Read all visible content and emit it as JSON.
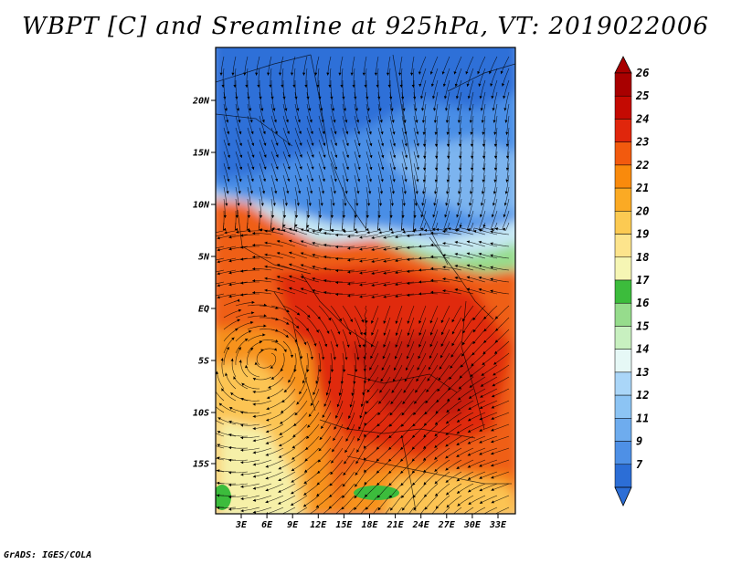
{
  "title": "WBPT [C] and Sreamline at 925hPa, VT: 2019022006",
  "credit": "GrADS: IGES/COLA",
  "lat_ticks": [
    "20N",
    "15N",
    "10N",
    "5N",
    "EQ",
    "5S",
    "10S",
    "15S"
  ],
  "lon_ticks": [
    "3E",
    "6E",
    "9E",
    "12E",
    "15E",
    "18E",
    "21E",
    "24E",
    "27E",
    "30E",
    "33E"
  ],
  "colorbar": {
    "levels": [
      {
        "label": "26",
        "color": "#a80000"
      },
      {
        "label": "25",
        "color": "#c40a02"
      },
      {
        "label": "24",
        "color": "#e0260c"
      },
      {
        "label": "23",
        "color": "#f25a0e"
      },
      {
        "label": "22",
        "color": "#f98a0c"
      },
      {
        "label": "21",
        "color": "#fbaa24"
      },
      {
        "label": "20",
        "color": "#fcca52"
      },
      {
        "label": "19",
        "color": "#fde48c"
      },
      {
        "label": "18",
        "color": "#f6f6b4"
      },
      {
        "label": "17",
        "color": "#3cbc3c"
      },
      {
        "label": "16",
        "color": "#96dc8c"
      },
      {
        "label": "15",
        "color": "#c8f0c0"
      },
      {
        "label": "14",
        "color": "#e6f8f6"
      },
      {
        "label": "13",
        "color": "#aad6f8"
      },
      {
        "label": "12",
        "color": "#8cc4f4"
      },
      {
        "label": "11",
        "color": "#6eacee"
      },
      {
        "label": "9",
        "color": "#4e90e6"
      },
      {
        "label": "7",
        "color": "#2c6ed6"
      }
    ],
    "over_color": "#a80000",
    "under_color": "#2c6ed6"
  },
  "colors": {
    "blue_dark": "#2f6fd8",
    "blue": "#4a8ee6",
    "blue_light": "#7cb4ef",
    "cyan_light": "#c6e8f4",
    "green_light": "#96dc8c",
    "green": "#3cbc3c",
    "yellow": "#f6f0a8",
    "orange_light": "#fcc452",
    "orange": "#f7921a",
    "orange_dark": "#ef5e12",
    "red": "#e02a0e",
    "red_dark": "#c41a08"
  }
}
